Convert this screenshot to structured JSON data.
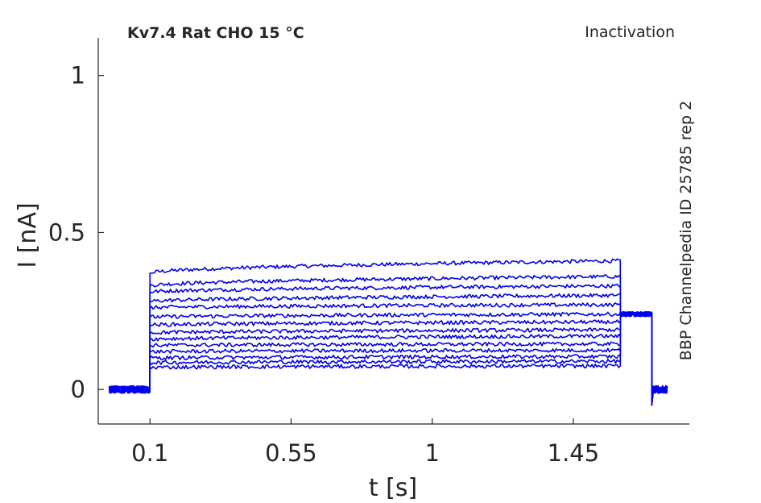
{
  "chart_data": {
    "type": "line",
    "title": "Kv7.4  Rat  CHO  15 °C",
    "protocol_label": "Inactivation",
    "side_label": "BBP Channelpedia ID 25785 rep 2",
    "xlabel": "t [s]",
    "ylabel": "I [nA]",
    "xlim": [
      -0.065,
      1.82
    ],
    "ylim": [
      -0.11,
      1.12
    ],
    "xticks": [
      0.1,
      0.55,
      1,
      1.45
    ],
    "xtick_labels": [
      "0.1",
      "0.55",
      "1",
      "1.45"
    ],
    "yticks": [
      0,
      0.5,
      1
    ],
    "ytick_labels": [
      "0",
      "0.5",
      "1"
    ],
    "grid": false,
    "line_color": "#0000ee",
    "phases": {
      "baseline_end": 0.1,
      "step_end": 1.6,
      "tail_end": 1.7,
      "record_start": -0.03,
      "record_end": 1.75
    },
    "tail_current": 0.24,
    "series": [
      {
        "start": 0.37,
        "end": 0.41
      },
      {
        "start": 0.33,
        "end": 0.36
      },
      {
        "start": 0.31,
        "end": 0.33
      },
      {
        "start": 0.28,
        "end": 0.3
      },
      {
        "start": 0.26,
        "end": 0.27
      },
      {
        "start": 0.23,
        "end": 0.24
      },
      {
        "start": 0.205,
        "end": 0.215
      },
      {
        "start": 0.18,
        "end": 0.19
      },
      {
        "start": 0.16,
        "end": 0.17
      },
      {
        "start": 0.14,
        "end": 0.145
      },
      {
        "start": 0.12,
        "end": 0.125
      },
      {
        "start": 0.1,
        "end": 0.105
      },
      {
        "start": 0.085,
        "end": 0.09
      },
      {
        "start": 0.07,
        "end": 0.075
      }
    ]
  }
}
